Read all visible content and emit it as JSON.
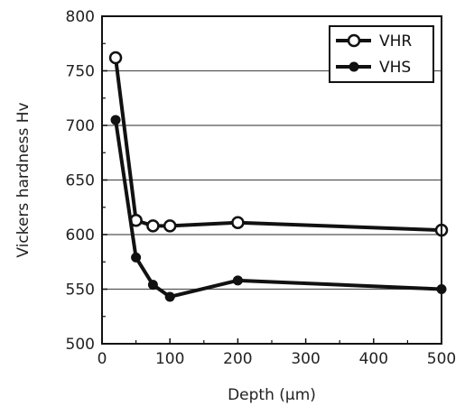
{
  "chart_data": {
    "type": "line",
    "title": "",
    "xlabel": "Depth (μm)",
    "ylabel": "Vickers hardness Hv",
    "xlim": [
      0,
      500
    ],
    "ylim": [
      500,
      800
    ],
    "xticks": [
      0,
      100,
      200,
      300,
      400,
      500
    ],
    "yticks": [
      500,
      550,
      600,
      650,
      700,
      750,
      800
    ],
    "grid": "horizontal",
    "legend_position": "top-right",
    "series": [
      {
        "name": "VHR",
        "marker": "open-circle",
        "color": "#111111",
        "x": [
          20,
          50,
          75,
          100,
          200,
          500
        ],
        "values": [
          762,
          613,
          608,
          608,
          611,
          604
        ]
      },
      {
        "name": "VHS",
        "marker": "filled-circle",
        "color": "#111111",
        "x": [
          20,
          50,
          75,
          100,
          200,
          500
        ],
        "values": [
          705,
          579,
          554,
          543,
          558,
          550
        ]
      }
    ]
  }
}
